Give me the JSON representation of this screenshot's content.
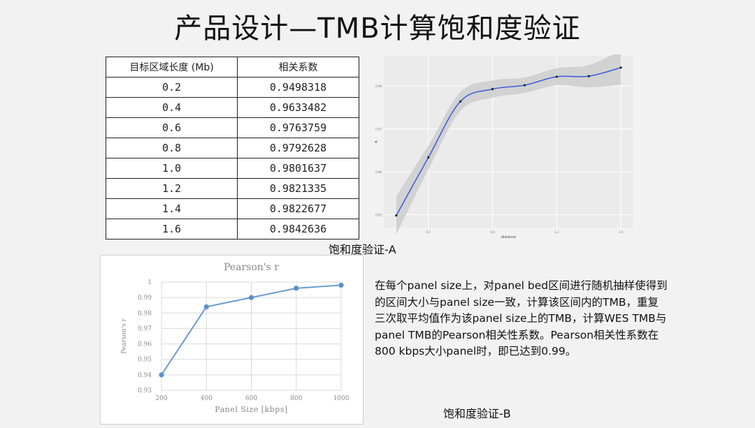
{
  "page": {
    "title": "产品设计—TMB计算饱和度验证",
    "caption_a": "饱和度验证-A",
    "caption_b": "饱和度验证-B",
    "description": "在每个panel size上，对panel bed区间进行随机抽样使得到的区间大小与panel size一致，计算该区间内的TMB，重复三次取平均值作为该panel size上的TMB，计算WES TMB与panel TMB的Pearson相关性系数。Pearson相关性系数在800 kbps大小panel时，即已达到0.99。"
  },
  "table": {
    "headers": [
      "目标区域长度 (Mb)",
      "相关系数"
    ],
    "rows": [
      [
        "0.2",
        "0.9498318"
      ],
      [
        "0.4",
        "0.9633482"
      ],
      [
        "0.6",
        "0.9763759"
      ],
      [
        "0.8",
        "0.9792628"
      ],
      [
        "1.0",
        "0.9801637"
      ],
      [
        "1.2",
        "0.9821335"
      ],
      [
        "1.4",
        "0.9822677"
      ],
      [
        "1.6",
        "0.9842636"
      ]
    ]
  },
  "chart_data": [
    {
      "type": "line",
      "title": "",
      "xlabel": "distance",
      "ylabel": "R",
      "x": [
        0.2,
        0.4,
        0.6,
        0.8,
        1.0,
        1.2,
        1.4,
        1.6
      ],
      "series": [
        {
          "values": [
            0.9498318,
            0.9633482,
            0.9763759,
            0.9792628,
            0.9801637,
            0.9821335,
            0.9822677,
            0.9842636
          ]
        }
      ],
      "smooth": true,
      "confidence_band": true,
      "xlim": [
        0.2,
        1.6
      ],
      "ylim": [
        0.947,
        0.987
      ],
      "grid": true,
      "colors": {
        "line": "#3b5bdb",
        "band": "#cfcfcf",
        "panel": "#ebebeb",
        "grid": "#ffffff"
      }
    },
    {
      "type": "line",
      "title": "Pearson's r",
      "xlabel": "Panel Size [kbps]",
      "ylabel": "Pearson's r",
      "categories": [
        "200",
        "400",
        "600",
        "800",
        "1000"
      ],
      "series": [
        {
          "values": [
            0.94,
            0.984,
            0.99,
            0.996,
            0.998
          ]
        }
      ],
      "ylim": [
        0.93,
        1.0
      ],
      "yticks": [
        "0.93",
        "0.94",
        "0.95",
        "0.96",
        "0.97",
        "0.98",
        "0.99",
        "1"
      ],
      "grid": true,
      "colors": {
        "line": "#6a9bd1",
        "marker": "#5b8fcb",
        "grid": "#d9d9d9",
        "axis_text": "#8a8a8a"
      }
    }
  ]
}
